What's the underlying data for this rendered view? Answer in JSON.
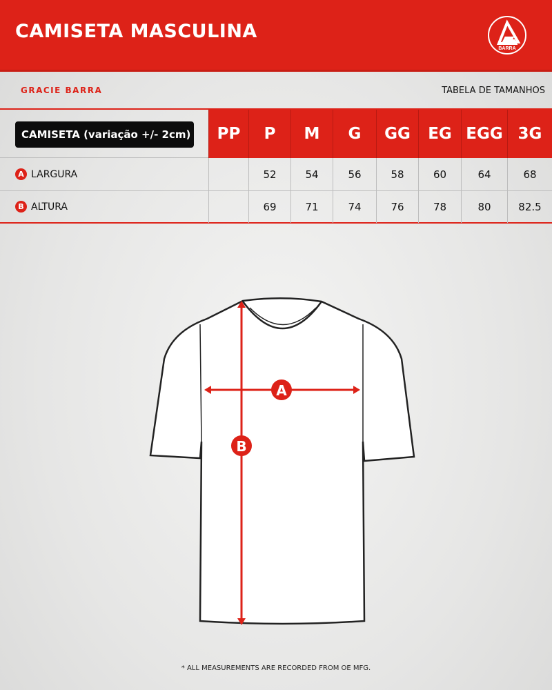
{
  "header": {
    "title": "CAMISETA MASCULINA",
    "logo_text": "BARRA"
  },
  "brand": "GRACIE BARRA",
  "subtitle": "TABELA DE TAMANHOS",
  "table": {
    "label": "CAMISETA (variação +/- 2cm)",
    "sizes": [
      "PP",
      "P",
      "M",
      "G",
      "GG",
      "EG",
      "EGG",
      "3G"
    ],
    "rows": [
      {
        "badge": "A",
        "label": "LARGURA",
        "values": [
          "",
          "52",
          "54",
          "56",
          "58",
          "60",
          "64",
          "68"
        ]
      },
      {
        "badge": "B",
        "label": "ALTURA",
        "values": [
          "",
          "69",
          "71",
          "74",
          "76",
          "78",
          "80",
          "82.5"
        ]
      }
    ]
  },
  "diagram": {
    "marker_a": "A",
    "marker_b": "B"
  },
  "footnote": "* ALL MEASUREMENTS ARE RECORDED FROM OE MFG.",
  "colors": {
    "accent": "#dd2218",
    "label_bg": "#0c0c0c"
  }
}
